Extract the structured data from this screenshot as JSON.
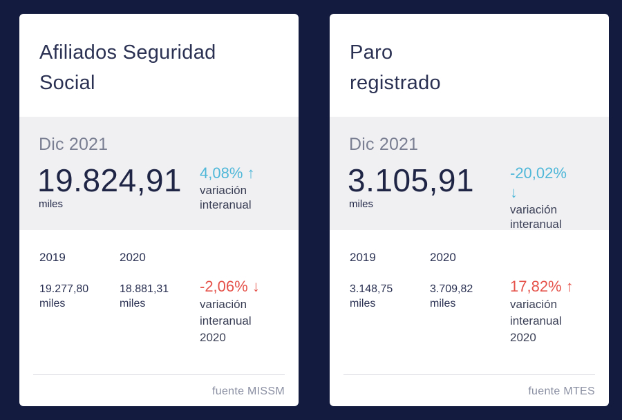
{
  "cards": [
    {
      "title_line1": "Afiliados Seguridad",
      "title_line2": "Social",
      "period": "Dic 2021",
      "value": "19.824,91",
      "unit": "miles",
      "variation": "4,08%",
      "variation_arrow": "↑",
      "variation_label_1": "variación",
      "variation_label_2": "interanual",
      "year1": "2019",
      "year2": "2020",
      "year1_value": "19.277,80",
      "year2_value": "18.881,31",
      "year_unit": "miles",
      "hist_variation": "-2,06%",
      "hist_variation_arrow": "↓",
      "hist_label_1": "variación",
      "hist_label_2": "interanual",
      "hist_label_3": "2020",
      "source": "fuente MISSM"
    },
    {
      "title_line1": "Paro",
      "title_line2": "registrado",
      "period": "Dic 2021",
      "value": "3.105,91",
      "unit": "miles",
      "variation": "-20,02%",
      "variation_arrow": "↓",
      "variation_label_1": "variación",
      "variation_label_2": "interanual",
      "year1": "2019",
      "year2": "2020",
      "year1_value": "3.148,75",
      "year2_value": "3.709,82",
      "year_unit": "miles",
      "hist_variation": "17,82%",
      "hist_variation_arrow": "↑",
      "hist_label_1": "variación",
      "hist_label_2": "interanual",
      "hist_label_3": "2020",
      "source": "fuente MTES"
    }
  ],
  "colors": {
    "background": "#131b3e",
    "positive_up": "#4fb7d8",
    "negative": "#e5534b"
  }
}
